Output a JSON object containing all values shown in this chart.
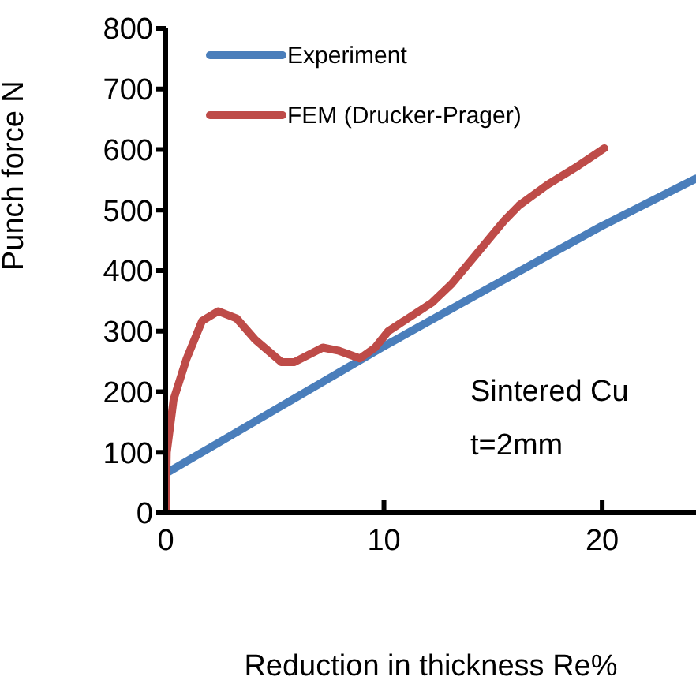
{
  "chart_data": {
    "type": "line",
    "xlabel": "Reduction in thickness   Re%",
    "ylabel": "Punch force N",
    "xlim": [
      0,
      24.3
    ],
    "xticks": [
      0,
      10,
      20
    ],
    "ylim": [
      0,
      800
    ],
    "yticks": [
      0,
      100,
      200,
      300,
      400,
      500,
      600,
      700,
      800
    ],
    "grid": false,
    "legend": "top left",
    "marker": "none",
    "line_style": "solid",
    "annotations": [
      "Sintered Cu",
      "t=2mm"
    ],
    "series": [
      {
        "name": "Experiment",
        "color": "#4a7ebb",
        "x": [
          0,
          5,
          10,
          15,
          20,
          24.3
        ],
        "values": [
          65,
          170,
          275,
          375,
          474,
          552
        ]
      },
      {
        "name": "FEM (Drucker-Prager)",
        "color": "#be4b48",
        "x": [
          0,
          0.05,
          0.36,
          0.96,
          1.67,
          2.4,
          3.25,
          4.1,
          5.3,
          5.9,
          7.2,
          7.9,
          8.9,
          9.6,
          10.2,
          12.2,
          13.1,
          14.3,
          15.5,
          16.2,
          17.5,
          18.9,
          20.1
        ],
        "values": [
          0,
          100,
          187,
          255,
          317,
          333,
          321,
          286,
          249,
          249,
          273,
          268,
          255,
          273,
          300,
          347,
          378,
          430,
          482,
          508,
          542,
          573,
          602
        ]
      }
    ]
  }
}
